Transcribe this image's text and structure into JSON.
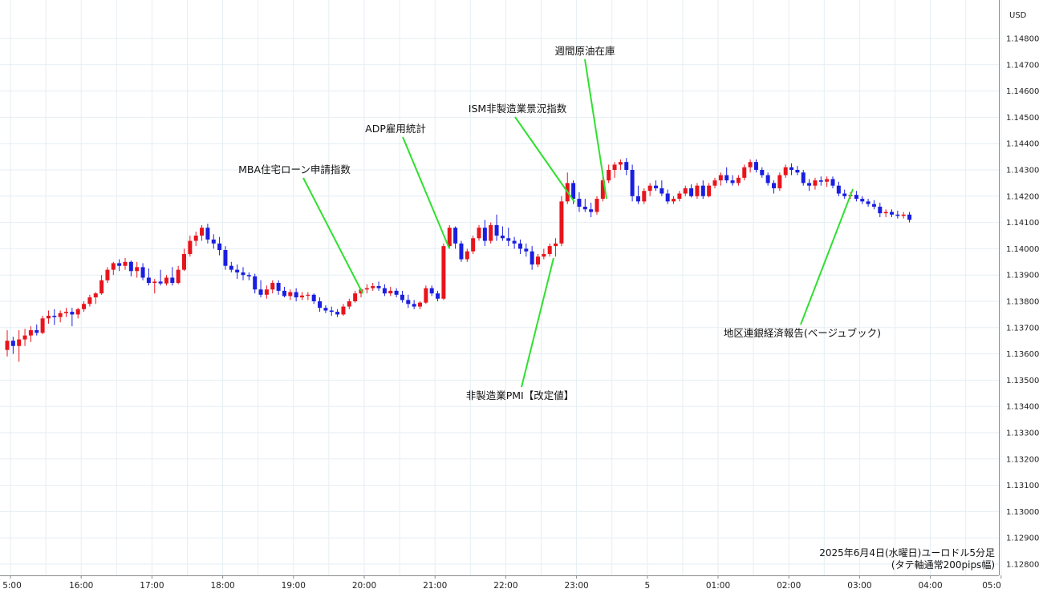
{
  "chart_data": {
    "type": "candlestick",
    "currency": "USD",
    "caption": [
      "2025年6月4日(水曜日)ユーロドル5分足",
      "(タテ軸通常200pips幅)"
    ],
    "y_ticks": [
      "1.14800",
      "1.14700",
      "1.14600",
      "1.14500",
      "1.14400",
      "1.14300",
      "1.14200",
      "1.14100",
      "1.14000",
      "1.13900",
      "1.13800",
      "1.13700",
      "1.13600",
      "1.13500",
      "1.13400",
      "1.13300",
      "1.13200",
      "1.13100",
      "1.13000",
      "1.12900",
      "1.12800"
    ],
    "x_ticks": [
      "5:00",
      "16:00",
      "17:00",
      "18:00",
      "19:00",
      "20:00",
      "21:00",
      "22:00",
      "23:00",
      "5",
      "01:00",
      "02:00",
      "03:00",
      "04:00",
      "05:0"
    ],
    "ylim": [
      1.1279,
      1.1489
    ],
    "up_color": "#e8141c",
    "down_color": "#1a1ee0",
    "annotation_color": "#2fe02f",
    "annotations": [
      {
        "label": "MBA住宅ローン申請指数",
        "time": "20:00"
      },
      {
        "label": "ADP雇用統計",
        "time": "21:15"
      },
      {
        "label": "ISM非製造業景況指数",
        "time": "23:00"
      },
      {
        "label": "週間原油在庫",
        "time": "23:30"
      },
      {
        "label": "非製造業PMI【改定値】",
        "time": "22:45"
      },
      {
        "label": "地区連銀経済報告(ベージュブック)",
        "time": "03:05"
      }
    ],
    "candles_ohlc": [
      [
        1.13615,
        1.1369,
        1.1359,
        1.1365
      ],
      [
        1.1365,
        1.13665,
        1.136,
        1.1363
      ],
      [
        1.1363,
        1.1369,
        1.1357,
        1.13655
      ],
      [
        1.13655,
        1.13695,
        1.1363,
        1.1367
      ],
      [
        1.1367,
        1.13705,
        1.13645,
        1.1369
      ],
      [
        1.1369,
        1.13712,
        1.1367,
        1.1368
      ],
      [
        1.1368,
        1.13745,
        1.13675,
        1.13735
      ],
      [
        1.13735,
        1.13765,
        1.13715,
        1.13745
      ],
      [
        1.13745,
        1.1377,
        1.1371,
        1.1374
      ],
      [
        1.1374,
        1.13765,
        1.1372,
        1.13755
      ],
      [
        1.13755,
        1.13775,
        1.1374,
        1.1376
      ],
      [
        1.1376,
        1.13775,
        1.13705,
        1.1375
      ],
      [
        1.1375,
        1.13775,
        1.13735,
        1.1377
      ],
      [
        1.1377,
        1.138,
        1.1376,
        1.1379
      ],
      [
        1.1379,
        1.13825,
        1.1378,
        1.13815
      ],
      [
        1.13815,
        1.13835,
        1.1379,
        1.1383
      ],
      [
        1.1383,
        1.139,
        1.13825,
        1.1388
      ],
      [
        1.1388,
        1.1393,
        1.1387,
        1.1392
      ],
      [
        1.1392,
        1.1395,
        1.139,
        1.13945
      ],
      [
        1.13945,
        1.1396,
        1.13915,
        1.13935
      ],
      [
        1.13935,
        1.13965,
        1.1392,
        1.1395
      ],
      [
        1.1395,
        1.13955,
        1.13895,
        1.13915
      ],
      [
        1.13915,
        1.1395,
        1.1389,
        1.1393
      ],
      [
        1.1393,
        1.13945,
        1.1388,
        1.1389
      ],
      [
        1.1389,
        1.13925,
        1.1386,
        1.1387
      ],
      [
        1.1387,
        1.13885,
        1.1383,
        1.13875
      ],
      [
        1.13875,
        1.1392,
        1.1386,
        1.13868
      ],
      [
        1.13868,
        1.139,
        1.1386,
        1.1389
      ],
      [
        1.1389,
        1.1393,
        1.1386,
        1.1387
      ],
      [
        1.1387,
        1.13935,
        1.13865,
        1.1392
      ],
      [
        1.1392,
        1.14,
        1.13915,
        1.1398
      ],
      [
        1.1398,
        1.1405,
        1.1397,
        1.1403
      ],
      [
        1.1403,
        1.14065,
        1.1401,
        1.1405
      ],
      [
        1.1405,
        1.1409,
        1.1403,
        1.1408
      ],
      [
        1.1408,
        1.14095,
        1.1402,
        1.14035
      ],
      [
        1.14035,
        1.14055,
        1.14,
        1.1402
      ],
      [
        1.1402,
        1.14045,
        1.13975,
        1.13995
      ],
      [
        1.13995,
        1.1401,
        1.1392,
        1.13935
      ],
      [
        1.13935,
        1.1395,
        1.1391,
        1.1392
      ],
      [
        1.1392,
        1.1394,
        1.13885,
        1.1391
      ],
      [
        1.1391,
        1.1393,
        1.1388,
        1.139
      ],
      [
        1.139,
        1.1391,
        1.1388,
        1.13895
      ],
      [
        1.13895,
        1.13905,
        1.1383,
        1.13845
      ],
      [
        1.13845,
        1.1388,
        1.13815,
        1.13825
      ],
      [
        1.13825,
        1.1386,
        1.1381,
        1.13845
      ],
      [
        1.13845,
        1.1388,
        1.1383,
        1.1387
      ],
      [
        1.1387,
        1.1388,
        1.13825,
        1.1384
      ],
      [
        1.1384,
        1.13855,
        1.13815,
        1.1382
      ],
      [
        1.1382,
        1.13845,
        1.13805,
        1.13835
      ],
      [
        1.13835,
        1.1385,
        1.138,
        1.13815
      ],
      [
        1.13815,
        1.13835,
        1.13805,
        1.13822
      ],
      [
        1.13822,
        1.13835,
        1.13805,
        1.13825
      ],
      [
        1.13825,
        1.1383,
        1.1379,
        1.138
      ],
      [
        1.138,
        1.13815,
        1.1376,
        1.13775
      ],
      [
        1.13775,
        1.13785,
        1.13755,
        1.13765
      ],
      [
        1.13765,
        1.1378,
        1.13745,
        1.1376
      ],
      [
        1.1376,
        1.1377,
        1.1374,
        1.1375
      ],
      [
        1.1375,
        1.1379,
        1.13745,
        1.1378
      ],
      [
        1.1378,
        1.1381,
        1.1377,
        1.138
      ],
      [
        1.138,
        1.1384,
        1.13795,
        1.1383
      ],
      [
        1.1383,
        1.1385,
        1.13815,
        1.13845
      ],
      [
        1.13845,
        1.13865,
        1.1383,
        1.1385
      ],
      [
        1.1385,
        1.1387,
        1.1384,
        1.13858
      ],
      [
        1.13858,
        1.13875,
        1.1384,
        1.1385
      ],
      [
        1.1385,
        1.13865,
        1.1382,
        1.1383
      ],
      [
        1.1383,
        1.13855,
        1.1382,
        1.1384
      ],
      [
        1.1384,
        1.1385,
        1.13815,
        1.13825
      ],
      [
        1.13825,
        1.1384,
        1.13795,
        1.13805
      ],
      [
        1.13805,
        1.13825,
        1.13775,
        1.1379
      ],
      [
        1.1379,
        1.13805,
        1.1377,
        1.1378
      ],
      [
        1.1378,
        1.138,
        1.1377,
        1.13795
      ],
      [
        1.13795,
        1.1386,
        1.1379,
        1.1385
      ],
      [
        1.1385,
        1.1386,
        1.1382,
        1.1383
      ],
      [
        1.1383,
        1.1384,
        1.138,
        1.1381
      ],
      [
        1.1381,
        1.1402,
        1.13805,
        1.1401
      ],
      [
        1.1401,
        1.1409,
        1.14,
        1.1408
      ],
      [
        1.1408,
        1.14085,
        1.14,
        1.1402
      ],
      [
        1.1402,
        1.1403,
        1.1395,
        1.1396
      ],
      [
        1.1396,
        1.14,
        1.1395,
        1.1399
      ],
      [
        1.1399,
        1.1405,
        1.1398,
        1.1404
      ],
      [
        1.1404,
        1.1409,
        1.1403,
        1.1408
      ],
      [
        1.1408,
        1.1411,
        1.1401,
        1.1403
      ],
      [
        1.1403,
        1.141,
        1.1402,
        1.1409
      ],
      [
        1.1409,
        1.1413,
        1.1403,
        1.1405
      ],
      [
        1.1405,
        1.14085,
        1.1403,
        1.1404
      ],
      [
        1.1404,
        1.1408,
        1.1401,
        1.1403
      ],
      [
        1.1403,
        1.14045,
        1.14,
        1.1402
      ],
      [
        1.1402,
        1.14035,
        1.1398,
        1.14
      ],
      [
        1.14,
        1.1402,
        1.1397,
        1.1399
      ],
      [
        1.1399,
        1.1401,
        1.1392,
        1.1394
      ],
      [
        1.1394,
        1.1398,
        1.1393,
        1.1397
      ],
      [
        1.1397,
        1.14,
        1.1396,
        1.1398
      ],
      [
        1.1398,
        1.1402,
        1.1397,
        1.1401
      ],
      [
        1.1401,
        1.1404,
        1.1397,
        1.1402
      ],
      [
        1.1402,
        1.142,
        1.1401,
        1.1418
      ],
      [
        1.1418,
        1.1429,
        1.1417,
        1.1425
      ],
      [
        1.1425,
        1.1426,
        1.1417,
        1.1419
      ],
      [
        1.1419,
        1.14215,
        1.1414,
        1.1416
      ],
      [
        1.1416,
        1.1419,
        1.1414,
        1.1415
      ],
      [
        1.1415,
        1.14175,
        1.1412,
        1.1414
      ],
      [
        1.1414,
        1.142,
        1.1413,
        1.1419
      ],
      [
        1.1419,
        1.1428,
        1.1418,
        1.1426
      ],
      [
        1.1426,
        1.1432,
        1.1425,
        1.143
      ],
      [
        1.143,
        1.1433,
        1.1427,
        1.1432
      ],
      [
        1.1432,
        1.1434,
        1.143,
        1.1433
      ],
      [
        1.1433,
        1.14345,
        1.1428,
        1.143
      ],
      [
        1.143,
        1.1432,
        1.1418,
        1.142
      ],
      [
        1.142,
        1.1424,
        1.1417,
        1.1418
      ],
      [
        1.1418,
        1.1423,
        1.1417,
        1.1422
      ],
      [
        1.1422,
        1.1425,
        1.142,
        1.1424
      ],
      [
        1.1424,
        1.1426,
        1.1422,
        1.1423
      ],
      [
        1.1423,
        1.1426,
        1.142,
        1.1421
      ],
      [
        1.1421,
        1.14225,
        1.1417,
        1.1418
      ],
      [
        1.1418,
        1.142,
        1.1417,
        1.1419
      ],
      [
        1.1419,
        1.1422,
        1.1418,
        1.1421
      ],
      [
        1.1421,
        1.1424,
        1.142,
        1.1423
      ],
      [
        1.1423,
        1.14245,
        1.14195,
        1.142
      ],
      [
        1.142,
        1.1425,
        1.1419,
        1.1424
      ],
      [
        1.1424,
        1.1426,
        1.1419,
        1.142
      ],
      [
        1.142,
        1.1425,
        1.14195,
        1.1424
      ],
      [
        1.1424,
        1.1427,
        1.1423,
        1.1426
      ],
      [
        1.1426,
        1.1429,
        1.1424,
        1.1428
      ],
      [
        1.1428,
        1.1431,
        1.1425,
        1.1426
      ],
      [
        1.1426,
        1.1428,
        1.1424,
        1.1425
      ],
      [
        1.1425,
        1.1428,
        1.1424,
        1.1427
      ],
      [
        1.1427,
        1.1432,
        1.1426,
        1.1431
      ],
      [
        1.1431,
        1.1434,
        1.1429,
        1.1433
      ],
      [
        1.1433,
        1.1434,
        1.1429,
        1.143
      ],
      [
        1.143,
        1.1431,
        1.1427,
        1.1428
      ],
      [
        1.1428,
        1.1429,
        1.1424,
        1.1425
      ],
      [
        1.1425,
        1.1426,
        1.1421,
        1.1423
      ],
      [
        1.1423,
        1.1429,
        1.1422,
        1.1428
      ],
      [
        1.1428,
        1.1432,
        1.1427,
        1.1431
      ],
      [
        1.1431,
        1.14325,
        1.1428,
        1.143
      ],
      [
        1.143,
        1.14315,
        1.1428,
        1.1429
      ],
      [
        1.1429,
        1.143,
        1.1424,
        1.1425
      ],
      [
        1.1425,
        1.14265,
        1.1422,
        1.1424
      ],
      [
        1.1424,
        1.1427,
        1.14225,
        1.1426
      ],
      [
        1.1426,
        1.14275,
        1.1424,
        1.14255
      ],
      [
        1.14255,
        1.14275,
        1.14235,
        1.14265
      ],
      [
        1.14265,
        1.14275,
        1.1423,
        1.1424
      ],
      [
        1.1424,
        1.14255,
        1.142,
        1.1421
      ],
      [
        1.1421,
        1.14225,
        1.1419,
        1.142
      ],
      [
        1.142,
        1.14215,
        1.1419,
        1.14205
      ],
      [
        1.14205,
        1.1422,
        1.1418,
        1.1419
      ],
      [
        1.1419,
        1.142,
        1.1417,
        1.1418
      ],
      [
        1.1418,
        1.1419,
        1.1416,
        1.1417
      ],
      [
        1.1417,
        1.14185,
        1.1415,
        1.1416
      ],
      [
        1.1416,
        1.14175,
        1.1412,
        1.14135
      ],
      [
        1.14135,
        1.1415,
        1.1412,
        1.1414
      ],
      [
        1.1414,
        1.1415,
        1.1412,
        1.1413
      ],
      [
        1.1413,
        1.14145,
        1.14115,
        1.14125
      ],
      [
        1.14125,
        1.1414,
        1.14115,
        1.1413
      ],
      [
        1.1413,
        1.1414,
        1.141,
        1.1411
      ]
    ]
  }
}
